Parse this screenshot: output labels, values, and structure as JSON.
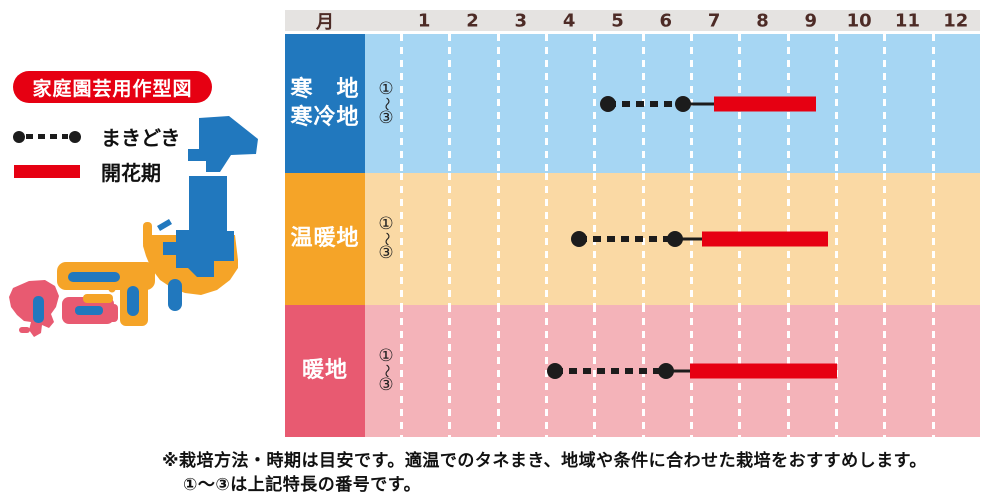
{
  "title_badge": {
    "text": "家庭園芸用作型図"
  },
  "legend": {
    "items": [
      {
        "key": "sowing",
        "label": "まきどき"
      },
      {
        "key": "flowering",
        "label": "開花期"
      }
    ]
  },
  "colors": {
    "red": "#e60012",
    "black": "#1c1c1c",
    "header_bg": "#e5e3e1",
    "header_text": "#4d2b26",
    "cold_label": "#2178be",
    "cold_body": "#a6d6f3",
    "temperate_label": "#f5a428",
    "temperate_body": "#fad9a4",
    "warm_label": "#e85a71",
    "warm_body": "#f4b3b9"
  },
  "chart_data": {
    "type": "timeline",
    "title": "家庭園芸用作型図",
    "month_axis": {
      "label": "月",
      "months": [
        "1",
        "2",
        "3",
        "4",
        "5",
        "6",
        "7",
        "8",
        "9",
        "10",
        "11",
        "12"
      ]
    },
    "feature_range_marker": {
      "top": "①",
      "middle": "〜",
      "bottom": "③"
    },
    "series_legend": [
      {
        "name": "まきどき",
        "style": "black-dotted-line-with-dots"
      },
      {
        "name": "開花期",
        "style": "red-bar"
      }
    ],
    "rows": [
      {
        "region": "寒地・寒冷地",
        "region_lines": [
          "寒　地",
          "寒冷地"
        ],
        "zone": "cold",
        "sow_start": 5.3,
        "sow_end": 6.85,
        "bloom_start": 7.5,
        "bloom_end": 9.6
      },
      {
        "region": "温暖地",
        "region_lines": [
          "温暖地"
        ],
        "zone": "temperate",
        "sow_start": 4.7,
        "sow_end": 6.7,
        "bloom_start": 7.25,
        "bloom_end": 9.85
      },
      {
        "region": "暖地",
        "region_lines": [
          "暖地"
        ],
        "zone": "warm",
        "sow_start": 4.2,
        "sow_end": 6.5,
        "bloom_start": 7.0,
        "bloom_end": 10.05
      }
    ]
  },
  "footnote": {
    "line1": "※栽培方法・時期は目安です。適温でのタネまき、地域や条件に合わせた栽培をおすすめします。",
    "line2": "①〜③は上記特長の番号です。"
  }
}
